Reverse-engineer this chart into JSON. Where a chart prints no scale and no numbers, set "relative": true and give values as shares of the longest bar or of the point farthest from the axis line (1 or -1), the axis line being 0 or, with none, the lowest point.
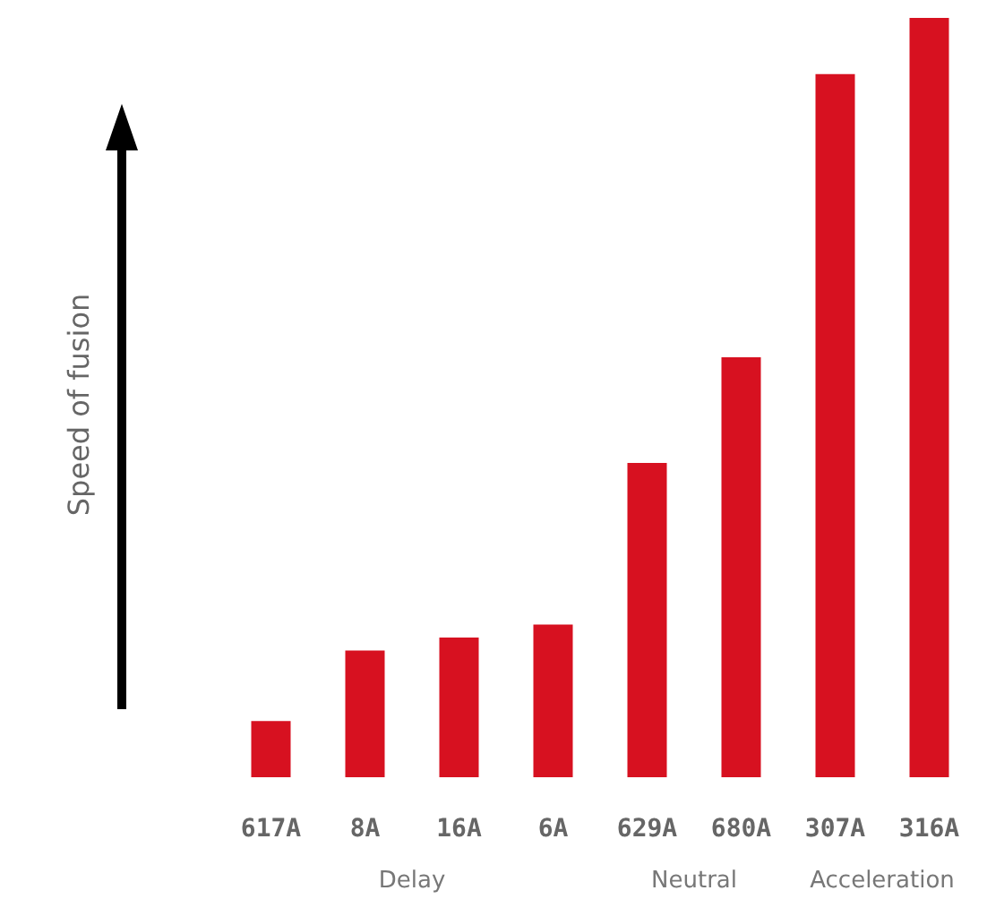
{
  "chart_data": {
    "type": "bar",
    "relative": true,
    "categories": [
      "617A",
      "8A",
      "16A",
      "6A",
      "629A",
      "680A",
      "307A",
      "316A"
    ],
    "series": [
      {
        "color": "#d71120",
        "values": [
          0.074,
          0.167,
          0.184,
          0.201,
          0.414,
          0.553,
          0.926,
          1
        ]
      }
    ],
    "annotations": [
      "Speed of fusion",
      "Delay",
      "Neutral",
      "Acceleration"
    ]
  }
}
